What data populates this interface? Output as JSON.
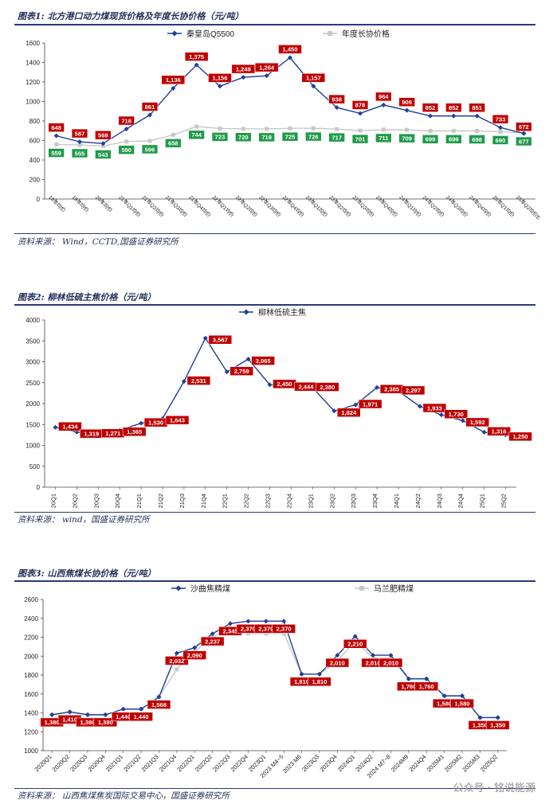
{
  "charts": [
    {
      "title": "图表1:  北方港口动力煤现货价格及年度长协价格（元/吨）",
      "source": "资料来源：  Wind，CCTD,国盛证券研究所",
      "chart_data": {
        "type": "line",
        "categories": [
          "18年均价",
          "19年均价",
          "20年均价",
          "21年Q1均价",
          "21年Q2均价",
          "21年Q3均价",
          "21年Q4均价",
          "22年Q1均价",
          "22年Q2均价",
          "22年Q3均价",
          "22年Q4均价",
          "23年Q1均价",
          "23年Q2均价",
          "23年Q3均价",
          "23年Q4均价",
          "24年Q1均价",
          "24年Q2均价",
          "24年Q3均价",
          "24年Q4均价",
          "25年Q1均价",
          "25年Q2均价E"
        ],
        "ylim": [
          0,
          1600
        ],
        "yticks": [
          0,
          200,
          400,
          600,
          800,
          1000,
          1200,
          1400,
          1600
        ],
        "legend_position": "top",
        "series": [
          {
            "name": "秦皇岛Q5500",
            "color": "#1f3f99",
            "label_color": "#c00000",
            "values": [
              648,
              587,
              569,
              718,
              861,
              1136,
              1375,
              1156,
              1248,
              1264,
              1450,
              1157,
              938,
              878,
              964,
              909,
              852,
              852,
              851,
              733,
              672
            ]
          },
          {
            "name": "年度长协价格",
            "color": "#c8c8c8",
            "label_color": "#1f9a4a",
            "values": [
              559,
              555,
              543,
              590,
              596,
              658,
              744,
              723,
              720,
              719,
              725,
              726,
              717,
              701,
              711,
              709,
              699,
              699,
              698,
              690,
              677
            ]
          }
        ]
      }
    },
    {
      "title": "图表2:  柳林低硫主焦价格（元/吨）",
      "source": "资料来源：  wind，国盛证券研究所",
      "chart_data": {
        "type": "line",
        "categories": [
          "20Q1",
          "20Q2",
          "20Q3",
          "20Q4",
          "21Q1",
          "21Q2",
          "21Q3",
          "21Q4",
          "22Q1",
          "22Q2",
          "22Q3",
          "22Q4",
          "23Q1",
          "23Q2",
          "23Q3",
          "23Q4",
          "24Q1",
          "24Q2",
          "24Q3",
          "24Q4",
          "25Q1",
          "25Q2"
        ],
        "ylim": [
          0,
          4000
        ],
        "yticks": [
          0,
          500,
          1000,
          1500,
          2000,
          2500,
          3000,
          3500,
          4000
        ],
        "legend_position": "top",
        "series": [
          {
            "name": "柳林低硫主焦",
            "color": "#1f3f99",
            "label_color": "#c00000",
            "values": [
              1434,
              1319,
              1271,
              1365,
              1530,
              1643,
              2531,
              3567,
              2759,
              3065,
              2450,
              2444,
              2380,
              1824,
              1971,
              2385,
              2297,
              1933,
              1730,
              1592,
              1316,
              1250
            ]
          }
        ]
      }
    },
    {
      "title": "图表3:  山西焦煤长协价格（元/吨）",
      "source": "资料来源：  山西焦煤焦炭国际交易中心，国盛证券研究所",
      "chart_data": {
        "type": "line",
        "categories": [
          "2020Q1",
          "2020Q2",
          "2020Q3",
          "2020Q4",
          "2021Q1",
          "2021Q2",
          "2021Q3",
          "2021Q4",
          "2022Q1",
          "2022Q2",
          "2022Q3",
          "2022Q4",
          "2023Q1",
          "2023 M4~5",
          "2023 M6",
          "2023Q3",
          "2023Q4",
          "2024Q1",
          "2024Q2",
          "2024 M7~8",
          "2024M9",
          "2024Q4",
          "2025M1",
          "2025M2",
          "2025M3",
          "2025Q2"
        ],
        "ylim": [
          1000,
          2600
        ],
        "yticks": [
          1000,
          1200,
          1400,
          1600,
          1800,
          2000,
          2200,
          2400,
          2600
        ],
        "legend_position": "top",
        "series": [
          {
            "name": "沙曲焦精煤",
            "color": "#1f3f99",
            "label_color": "#c00000",
            "values": [
              1380,
              1410,
              1380,
              1380,
              1440,
              1440,
              1568,
              2032,
              2090,
              2237,
              2345,
              2370,
              2370,
              2370,
              1810,
              1810,
              2010,
              2210,
              2010,
              2010,
              1760,
              1760,
              1580,
              1580,
              1350,
              1350
            ]
          },
          {
            "name": "马兰肥精煤",
            "color": "#c8c8c8",
            "label_color": null,
            "values": [
              1380,
              1410,
              1380,
              1380,
              1440,
              1440,
              1568,
              1860,
              2050,
              2200,
              2300,
              2240,
              2240,
              2240,
              1810,
              1810,
              1950,
              2160,
              1980,
              1980,
              1760,
              1760,
              1580,
              1580,
              1350,
              1350
            ]
          }
        ]
      }
    }
  ],
  "watermark": "公众号 · 铭说能源"
}
